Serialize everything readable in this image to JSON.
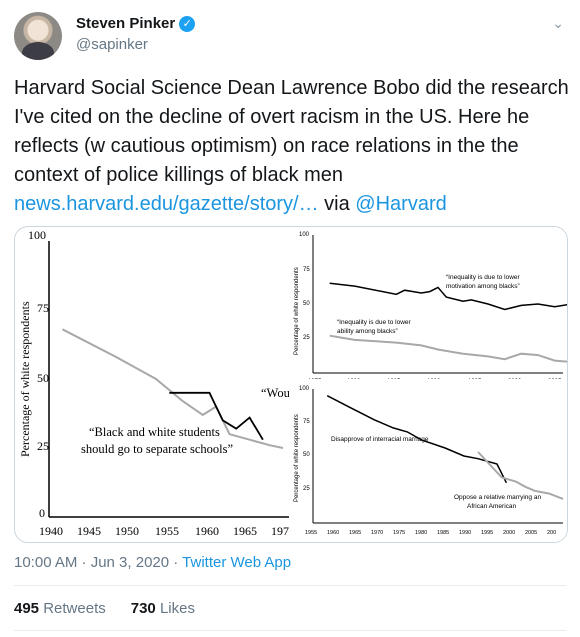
{
  "author": {
    "display_name": "Steven Pinker",
    "handle": "@sapinker",
    "verified_icon": "✓"
  },
  "tweet": {
    "text": "Harvard Social Science Dean Lawrence Bobo did the research I've cited on the decline of overt racism in the US. Here he reflects (w cautious optimism) on race relations in the the context of police killings of black men",
    "link": "news.harvard.edu/gazette/story/…",
    "via": " via ",
    "mention": "@Harvard"
  },
  "meta": {
    "time": "10:00 AM · Jun 3, 2020 · ",
    "app": "Twitter Web App"
  },
  "stats": {
    "retweets_count": "495",
    "retweets_label": "Retweets",
    "likes_count": "730",
    "likes_label": "Likes"
  },
  "chart_data": [
    {
      "type": "line",
      "ylabel": "Percentage of white respondents",
      "ylim": [
        0,
        100
      ],
      "xlim": [
        1940,
        1975
      ],
      "y_ticks": [
        "0",
        "25",
        "50",
        "75",
        "100"
      ],
      "x_ticks": [
        "1940",
        "1945",
        "1950",
        "1955",
        "1960",
        "1965",
        "197"
      ],
      "annotations": [
        "“Black and white students",
        "should go to separate schools”",
        "“Wou"
      ],
      "series": [
        {
          "color": "#a8a8a8",
          "x": [
            1942,
            1950,
            1956,
            1960,
            1963,
            1965,
            1967,
            1970,
            1973,
            1975
          ],
          "y": [
            68,
            58,
            50,
            42,
            37,
            40,
            30,
            28,
            26,
            25
          ]
        },
        {
          "color": "#000000",
          "x": [
            1958,
            1960,
            1962,
            1964,
            1965,
            1966,
            1968,
            1970,
            1972
          ],
          "y": [
            45,
            45,
            45,
            45,
            40,
            35,
            32,
            36,
            28
          ]
        }
      ]
    },
    {
      "type": "line",
      "ylabel": "Percentage of white respondents",
      "ylim": [
        0,
        100
      ],
      "xlim": [
        1975,
        2005
      ],
      "y_ticks": [
        "25",
        "50",
        "75",
        "100"
      ],
      "x_ticks": [
        "1975",
        "1980",
        "1985",
        "1990",
        "1995",
        "2000",
        "2005"
      ],
      "annotations": [
        "“Inequality is due to lower",
        "motivation among blacks”",
        "“Inequality is due to lower",
        "ability among blacks”"
      ],
      "series": [
        {
          "color": "#000000",
          "x": [
            1977,
            1980,
            1985,
            1986,
            1988,
            1989,
            1990,
            1991,
            1993,
            1994,
            1996,
            1998,
            2000,
            2002,
            2004,
            2006
          ],
          "y": [
            65,
            63,
            57,
            60,
            58,
            59,
            62,
            55,
            52,
            53,
            50,
            46,
            49,
            50,
            48,
            50
          ]
        },
        {
          "color": "#a8a8a8",
          "x": [
            1977,
            1980,
            1985,
            1988,
            1990,
            1993,
            1996,
            1998,
            2000,
            2002,
            2004,
            2006
          ],
          "y": [
            27,
            24,
            22,
            20,
            17,
            14,
            12,
            10,
            14,
            13,
            9,
            8
          ]
        }
      ]
    },
    {
      "type": "line",
      "ylabel": "Percentage of white respondents",
      "ylim": [
        0,
        100
      ],
      "xlim": [
        1955,
        2008
      ],
      "y_ticks": [
        "25",
        "50",
        "75",
        "100"
      ],
      "x_ticks": [
        "1955",
        "1960",
        "1965",
        "1970",
        "1975",
        "1980",
        "1985",
        "1990",
        "1995",
        "2000",
        "2005",
        "200"
      ],
      "annotations": [
        "Disapprove of interracial marriage",
        "Oppose a relative marrying an",
        "African American"
      ],
      "series": [
        {
          "color": "#000000",
          "x": [
            1958,
            1963,
            1968,
            1972,
            1975,
            1978,
            1983,
            1987,
            1990,
            1994,
            1996
          ],
          "y": [
            95,
            86,
            77,
            71,
            68,
            62,
            56,
            50,
            48,
            44,
            30
          ]
        },
        {
          "color": "#a8a8a8",
          "x": [
            1990,
            1995,
            1998,
            2000,
            2002,
            2005,
            2008
          ],
          "y": [
            53,
            34,
            31,
            27,
            24,
            22,
            18
          ]
        }
      ]
    }
  ]
}
